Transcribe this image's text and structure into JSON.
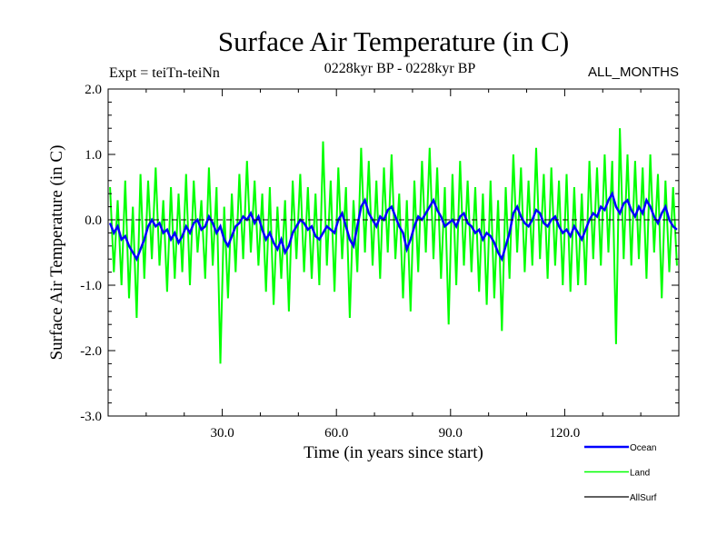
{
  "chart_data": {
    "type": "line",
    "title": "Surface Air Temperature (in C)",
    "subtitle_left": "Expt = teiTn-teiNn",
    "subtitle_center": "0228kyr BP - 0228kyr BP",
    "subtitle_right": "ALL_MONTHS",
    "xlabel": "Time (in years since start)",
    "ylabel": "Surface Air Temperature (in C)",
    "xlim": [
      0,
      150
    ],
    "ylim": [
      -3.0,
      2.0
    ],
    "xticks": [
      30,
      60,
      90,
      120
    ],
    "xtick_labels": [
      "30.0",
      "60.0",
      "90.0",
      "120.0"
    ],
    "yticks": [
      2.0,
      1.0,
      0.0,
      -1.0,
      -2.0,
      -3.0
    ],
    "ytick_labels": [
      "2.0",
      "1.0",
      "0.0",
      "-1.0",
      "-2.0",
      "-3.0"
    ],
    "grid": false,
    "reference_line": 0.0,
    "legend_position": "bottom-right",
    "x": "years 1..150",
    "series": [
      {
        "name": "Land",
        "color": "#00ff00",
        "values": [
          0.5,
          -0.8,
          0.3,
          -1.0,
          0.6,
          -1.2,
          0.2,
          -1.5,
          0.7,
          -0.9,
          0.6,
          -0.6,
          0.8,
          -0.7,
          0.3,
          -1.1,
          0.5,
          -0.9,
          0.4,
          -0.8,
          0.7,
          -1.0,
          0.6,
          -0.5,
          0.3,
          -0.9,
          0.8,
          -0.7,
          0.5,
          -2.2,
          0.2,
          -1.2,
          0.4,
          -0.8,
          0.7,
          -0.6,
          0.9,
          -0.5,
          0.6,
          -0.7,
          0.4,
          -1.1,
          0.5,
          -1.3,
          0.2,
          -0.9,
          0.3,
          -1.4,
          0.6,
          -0.6,
          0.7,
          -0.8,
          0.5,
          -0.9,
          0.4,
          -1.0,
          1.2,
          -0.7,
          0.6,
          -1.1,
          0.8,
          -0.6,
          0.5,
          -1.5,
          0.3,
          -0.8,
          1.1,
          -0.5,
          0.9,
          -0.7,
          0.6,
          -0.9,
          0.8,
          -0.5,
          1.0,
          -0.6,
          0.4,
          -1.2,
          0.3,
          -1.4,
          0.6,
          -0.8,
          0.9,
          -0.5,
          1.1,
          -0.6,
          0.8,
          -0.9,
          0.5,
          -1.6,
          0.7,
          -1.0,
          0.9,
          -0.7,
          0.6,
          -0.8,
          0.5,
          -1.1,
          0.4,
          -1.3,
          0.6,
          -1.2,
          0.3,
          -1.7,
          0.5,
          -0.9,
          1.0,
          -0.5,
          0.8,
          -0.8,
          0.6,
          -0.7,
          1.1,
          -0.6,
          0.7,
          -0.9,
          0.8,
          -0.7,
          0.6,
          -1.0,
          0.7,
          -1.1,
          0.5,
          -1.0,
          0.4,
          -1.0,
          0.9,
          -0.6,
          0.8,
          -0.7,
          1.0,
          -0.5,
          0.9,
          -1.9,
          1.4,
          -0.6,
          1.0,
          -0.7,
          0.9,
          -0.6,
          0.8,
          -0.9,
          1.0,
          -0.5,
          0.7,
          -1.2,
          0.6,
          -0.8,
          0.5,
          -0.7
        ]
      },
      {
        "name": "AllSurf",
        "color": "#000000",
        "values": [
          -0.05,
          -0.2,
          -0.1,
          -0.3,
          -0.25,
          -0.4,
          -0.5,
          -0.6,
          -0.45,
          -0.3,
          -0.1,
          0.0,
          -0.1,
          -0.05,
          -0.2,
          -0.15,
          -0.3,
          -0.2,
          -0.35,
          -0.25,
          -0.1,
          -0.2,
          -0.05,
          0.0,
          -0.15,
          -0.1,
          0.05,
          -0.05,
          -0.2,
          -0.1,
          -0.3,
          -0.4,
          -0.25,
          -0.1,
          -0.05,
          0.05,
          0.0,
          0.1,
          -0.05,
          0.05,
          -0.15,
          -0.3,
          -0.2,
          -0.35,
          -0.45,
          -0.3,
          -0.5,
          -0.4,
          -0.2,
          -0.1,
          0.0,
          -0.05,
          -0.15,
          -0.1,
          -0.25,
          -0.3,
          -0.2,
          -0.1,
          -0.15,
          -0.2,
          0.0,
          0.1,
          -0.1,
          -0.3,
          -0.4,
          -0.1,
          0.2,
          0.3,
          0.1,
          0.0,
          -0.1,
          0.05,
          0.0,
          0.15,
          0.2,
          0.05,
          -0.1,
          -0.2,
          -0.45,
          -0.3,
          -0.1,
          0.05,
          0.0,
          0.1,
          0.2,
          0.3,
          0.15,
          0.05,
          -0.1,
          -0.05,
          0.0,
          -0.1,
          0.05,
          0.1,
          -0.05,
          -0.1,
          -0.2,
          -0.15,
          -0.3,
          -0.2,
          -0.25,
          -0.35,
          -0.5,
          -0.6,
          -0.4,
          -0.2,
          0.1,
          0.2,
          0.05,
          -0.05,
          -0.1,
          0.0,
          0.15,
          0.1,
          -0.05,
          -0.1,
          0.0,
          0.05,
          -0.1,
          -0.2,
          -0.15,
          -0.25,
          -0.1,
          -0.2,
          -0.3,
          -0.15,
          0.0,
          0.1,
          0.05,
          0.2,
          0.15,
          0.3,
          0.4,
          0.2,
          0.1,
          0.25,
          0.3,
          0.15,
          0.05,
          0.2,
          0.1,
          0.3,
          0.2,
          0.05,
          -0.05,
          0.1,
          0.2,
          0.0,
          -0.1,
          -0.15
        ]
      },
      {
        "name": "Ocean",
        "color": "#0000ff",
        "values": [
          -0.05,
          -0.2,
          -0.1,
          -0.3,
          -0.25,
          -0.4,
          -0.5,
          -0.6,
          -0.45,
          -0.3,
          -0.1,
          0.0,
          -0.1,
          -0.05,
          -0.2,
          -0.15,
          -0.3,
          -0.2,
          -0.35,
          -0.25,
          -0.1,
          -0.2,
          -0.05,
          0.0,
          -0.15,
          -0.1,
          0.05,
          -0.05,
          -0.2,
          -0.1,
          -0.3,
          -0.4,
          -0.25,
          -0.1,
          -0.05,
          0.05,
          0.0,
          0.1,
          -0.05,
          0.05,
          -0.15,
          -0.3,
          -0.2,
          -0.35,
          -0.45,
          -0.3,
          -0.5,
          -0.4,
          -0.2,
          -0.1,
          0.0,
          -0.05,
          -0.15,
          -0.1,
          -0.25,
          -0.3,
          -0.2,
          -0.1,
          -0.15,
          -0.2,
          0.0,
          0.1,
          -0.1,
          -0.3,
          -0.4,
          -0.1,
          0.2,
          0.3,
          0.1,
          0.0,
          -0.1,
          0.05,
          0.0,
          0.15,
          0.2,
          0.05,
          -0.1,
          -0.2,
          -0.45,
          -0.3,
          -0.1,
          0.05,
          0.0,
          0.1,
          0.2,
          0.3,
          0.15,
          0.05,
          -0.1,
          -0.05,
          0.0,
          -0.1,
          0.05,
          0.1,
          -0.05,
          -0.1,
          -0.2,
          -0.15,
          -0.3,
          -0.2,
          -0.25,
          -0.35,
          -0.5,
          -0.6,
          -0.4,
          -0.2,
          0.1,
          0.2,
          0.05,
          -0.05,
          -0.1,
          0.0,
          0.15,
          0.1,
          -0.05,
          -0.1,
          0.0,
          0.05,
          -0.1,
          -0.2,
          -0.15,
          -0.25,
          -0.1,
          -0.2,
          -0.3,
          -0.15,
          0.0,
          0.1,
          0.05,
          0.2,
          0.15,
          0.3,
          0.4,
          0.2,
          0.1,
          0.25,
          0.3,
          0.15,
          0.05,
          0.2,
          0.1,
          0.3,
          0.2,
          0.05,
          -0.05,
          0.1,
          0.2,
          0.0,
          -0.1,
          -0.15
        ]
      }
    ],
    "legend": [
      "Ocean",
      "Land",
      "AllSurf"
    ]
  }
}
